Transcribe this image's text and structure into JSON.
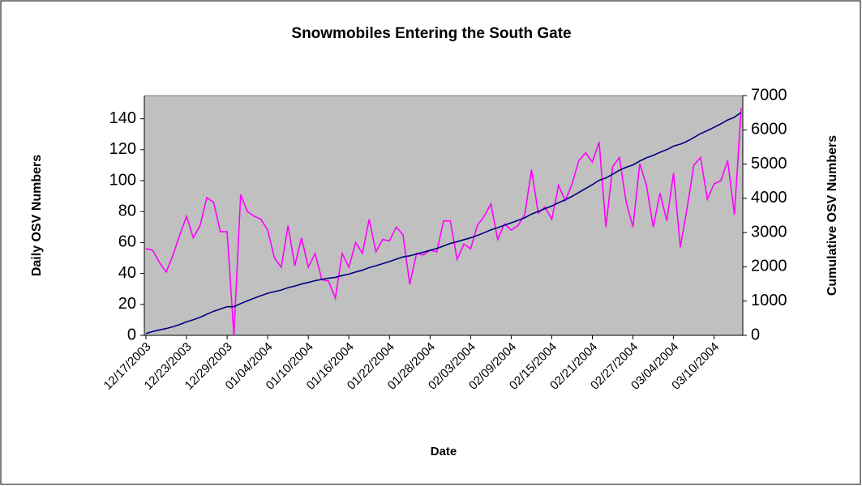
{
  "chart_data": {
    "type": "line",
    "title": "Snowmobiles Entering the South Gate",
    "x_label": "Date",
    "y_label": "Daily OSV Numbers",
    "y2_label": "Cumulative OSV Numbers",
    "categories": [
      "12/17/2003",
      null,
      null,
      null,
      null,
      null,
      "12/23/2003",
      null,
      null,
      null,
      null,
      null,
      "12/29/2003",
      null,
      null,
      null,
      null,
      null,
      "01/04/2004",
      null,
      null,
      null,
      null,
      null,
      "01/10/2004",
      null,
      null,
      null,
      null,
      null,
      "01/16/2004",
      null,
      null,
      null,
      null,
      null,
      "01/22/2004",
      null,
      null,
      null,
      null,
      null,
      "01/28/2004",
      null,
      null,
      null,
      null,
      null,
      "02/03/2004",
      null,
      null,
      null,
      null,
      null,
      "02/09/2004",
      null,
      null,
      null,
      null,
      null,
      "02/15/2004",
      null,
      null,
      null,
      null,
      null,
      "02/21/2004",
      null,
      null,
      null,
      null,
      null,
      "02/27/2004",
      null,
      null,
      null,
      null,
      null,
      "03/04/2004",
      null,
      null,
      null,
      null,
      null,
      "03/10/2004",
      null,
      null,
      null,
      null
    ],
    "series": [
      {
        "name": "Daily OSV Numbers",
        "color": "#ff00ff",
        "axis": "y",
        "values": [
          56,
          55,
          47,
          41,
          52,
          65,
          77,
          63,
          71,
          89,
          86,
          67,
          67,
          0,
          91,
          80,
          77,
          75,
          68,
          50,
          44,
          71,
          45,
          63,
          44,
          53,
          36,
          35,
          24,
          53,
          44,
          60,
          53,
          75,
          54,
          62,
          61,
          70,
          65,
          33,
          53,
          52,
          55,
          54,
          74,
          74,
          49,
          59,
          56,
          71,
          77,
          85,
          62,
          72,
          68,
          71,
          78,
          107,
          79,
          83,
          75,
          97,
          87,
          98,
          113,
          118,
          112,
          125,
          70,
          109,
          115,
          86,
          70,
          111,
          97,
          70,
          92,
          74,
          105,
          57,
          82,
          110,
          115,
          88,
          98,
          100,
          113,
          78,
          147
        ]
      },
      {
        "name": "Cumulative OSV Numbers",
        "color": "#000080",
        "axis": "y2",
        "values": [
          56,
          111,
          158,
          199,
          251,
          316,
          393,
          456,
          527,
          616,
          702,
          769,
          836,
          836,
          927,
          1007,
          1084,
          1159,
          1227,
          1277,
          1321,
          1392,
          1437,
          1500,
          1544,
          1597,
          1633,
          1668,
          1692,
          1745,
          1789,
          1849,
          1902,
          1977,
          2031,
          2093,
          2154,
          2224,
          2289,
          2322,
          2375,
          2427,
          2482,
          2536,
          2610,
          2684,
          2733,
          2792,
          2848,
          2919,
          2996,
          3081,
          3143,
          3215,
          3283,
          3354,
          3432,
          3539,
          3618,
          3701,
          3776,
          3873,
          3960,
          4058,
          4171,
          4289,
          4401,
          4526,
          4596,
          4705,
          4820,
          4906,
          4976,
          5087,
          5184,
          5254,
          5346,
          5420,
          5525,
          5582,
          5664,
          5774,
          5889,
          5977,
          6075,
          6175,
          6288,
          6366,
          6513
        ]
      }
    ],
    "ylim": [
      0,
      155
    ],
    "yticks": [
      0,
      20,
      40,
      60,
      80,
      100,
      120,
      140
    ],
    "y2lim": [
      0,
      7000
    ],
    "y2ticks": [
      0,
      1000,
      2000,
      3000,
      4000,
      5000,
      6000,
      7000
    ],
    "plot_background": "#c0c0c0",
    "grid": false
  }
}
